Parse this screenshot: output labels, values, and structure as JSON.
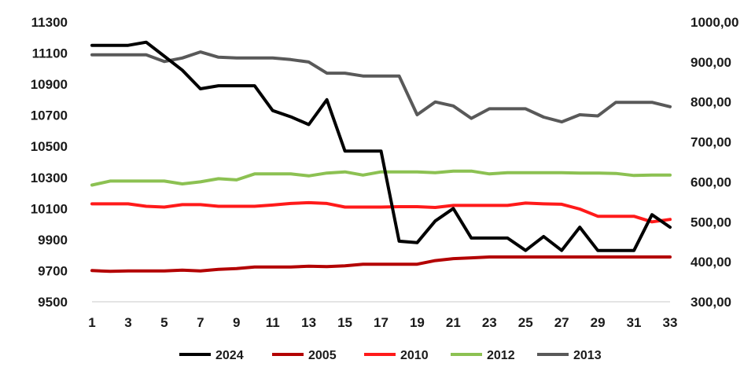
{
  "chart_data": {
    "type": "line",
    "title": "",
    "xlabel": "",
    "ylabel": "",
    "y2label": "",
    "grid": false,
    "legend_position": "bottom",
    "x": [
      1,
      2,
      3,
      4,
      5,
      6,
      7,
      8,
      9,
      10,
      11,
      12,
      13,
      14,
      15,
      16,
      17,
      18,
      19,
      20,
      21,
      22,
      23,
      24,
      25,
      26,
      27,
      28,
      29,
      30,
      31,
      32,
      33
    ],
    "x_ticks": [
      1,
      3,
      5,
      7,
      9,
      11,
      13,
      15,
      17,
      19,
      21,
      23,
      25,
      27,
      29,
      31,
      33
    ],
    "x_tick_labels": [
      "1",
      "3",
      "5",
      "7",
      "9",
      "11",
      "13",
      "15",
      "17",
      "19",
      "21",
      "23",
      "25",
      "27",
      "29",
      "31",
      "33"
    ],
    "xlim": [
      1,
      33
    ],
    "ylim": [
      9500,
      11300
    ],
    "y_ticks": [
      9500,
      9700,
      9900,
      10100,
      10300,
      10500,
      10700,
      10900,
      11100,
      11300
    ],
    "y_tick_labels": [
      "9500",
      "9700",
      "9900",
      "10100",
      "10300",
      "10500",
      "10700",
      "10900",
      "11100",
      "11300"
    ],
    "y2lim": [
      300,
      1000
    ],
    "y2_ticks": [
      300,
      400,
      500,
      600,
      700,
      800,
      900,
      1000
    ],
    "y2_tick_labels": [
      "300,00",
      "400,00",
      "500,00",
      "600,00",
      "700,00",
      "800,00",
      "900,00",
      "1000,00"
    ],
    "series": [
      {
        "name": "2024",
        "axis": "left",
        "color": "#000000",
        "values": [
          11150,
          11150,
          11150,
          11170,
          11080,
          10990,
          10870,
          10890,
          10890,
          10890,
          10730,
          10690,
          10640,
          10800,
          10470,
          10470,
          10470,
          9890,
          9880,
          10020,
          10100,
          9910,
          9910,
          9910,
          9830,
          9920,
          9830,
          9980,
          9830,
          9830,
          9830,
          10060,
          9980
        ]
      },
      {
        "name": "2005",
        "axis": "right",
        "color": "#b30000",
        "values": [
          378,
          376,
          377,
          377,
          377,
          379,
          377,
          381,
          383,
          387,
          387,
          387,
          389,
          388,
          390,
          394,
          394,
          394,
          394,
          403,
          408,
          410,
          412,
          412,
          412,
          412,
          412,
          412,
          412,
          412,
          412,
          412,
          412
        ]
      },
      {
        "name": "2010",
        "axis": "right",
        "color": "#ff1a1a",
        "values": [
          545,
          545,
          545,
          539,
          537,
          543,
          543,
          539,
          539,
          539,
          542,
          546,
          548,
          546,
          537,
          537,
          537,
          538,
          538,
          536,
          541,
          541,
          541,
          541,
          547,
          545,
          544,
          532,
          514,
          514,
          514,
          500,
          506
        ]
      },
      {
        "name": "2012",
        "axis": "right",
        "color": "#8cc152",
        "values": [
          592,
          602,
          602,
          602,
          602,
          595,
          600,
          608,
          605,
          620,
          620,
          620,
          615,
          622,
          625,
          617,
          625,
          625,
          625,
          623,
          627,
          627,
          620,
          623,
          623,
          623,
          623,
          622,
          622,
          621,
          616,
          617,
          617
        ]
      },
      {
        "name": "2013",
        "axis": "right",
        "color": "#595959",
        "values": [
          918,
          918,
          918,
          918,
          901,
          910,
          925,
          912,
          910,
          910,
          910,
          906,
          900,
          872,
          872,
          865,
          865,
          865,
          768,
          800,
          790,
          759,
          783,
          783,
          783,
          762,
          750,
          768,
          765,
          799,
          799,
          799,
          788
        ]
      }
    ]
  }
}
